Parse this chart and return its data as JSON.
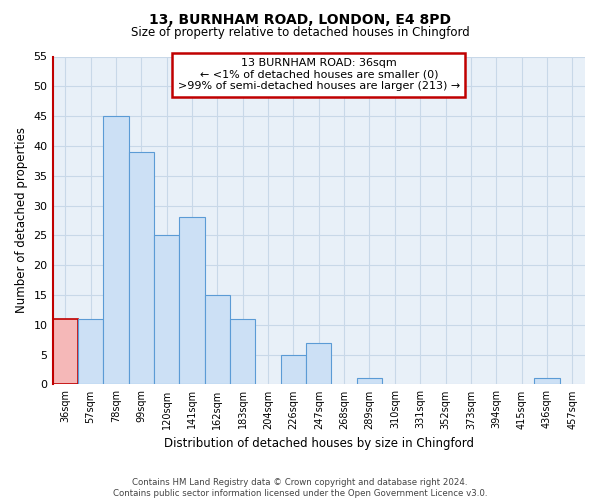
{
  "title": "13, BURNHAM ROAD, LONDON, E4 8PD",
  "subtitle": "Size of property relative to detached houses in Chingford",
  "xlabel": "Distribution of detached houses by size in Chingford",
  "ylabel": "Number of detached properties",
  "categories": [
    "36sqm",
    "57sqm",
    "78sqm",
    "99sqm",
    "120sqm",
    "141sqm",
    "162sqm",
    "183sqm",
    "204sqm",
    "226sqm",
    "247sqm",
    "268sqm",
    "289sqm",
    "310sqm",
    "331sqm",
    "352sqm",
    "373sqm",
    "394sqm",
    "415sqm",
    "436sqm",
    "457sqm"
  ],
  "values": [
    11,
    11,
    45,
    39,
    25,
    28,
    15,
    11,
    0,
    5,
    7,
    0,
    1,
    0,
    0,
    0,
    0,
    0,
    0,
    1,
    0
  ],
  "highlight_index": 0,
  "highlight_color": "#cce0f0",
  "highlight_fill": "#f5b8b8",
  "highlight_edge": "#c00000",
  "bar_color": "#cce0f5",
  "bar_edge_color": "#5b9bd5",
  "ylim": [
    0,
    55
  ],
  "yticks": [
    0,
    5,
    10,
    15,
    20,
    25,
    30,
    35,
    40,
    45,
    50,
    55
  ],
  "annotation_line1": "13 BURNHAM ROAD: 36sqm",
  "annotation_line2": "← <1% of detached houses are smaller (0)",
  "annotation_line3": ">99% of semi-detached houses are larger (213) →",
  "annotation_box_edgecolor": "#c00000",
  "annotation_box_facecolor": "#ffffff",
  "footer_line1": "Contains HM Land Registry data © Crown copyright and database right 2024.",
  "footer_line2": "Contains public sector information licensed under the Open Government Licence v3.0.",
  "fig_width": 6.0,
  "fig_height": 5.0,
  "background_color": "#ffffff",
  "grid_color": "#c8d8e8",
  "grid_bg_color": "#e8f0f8"
}
